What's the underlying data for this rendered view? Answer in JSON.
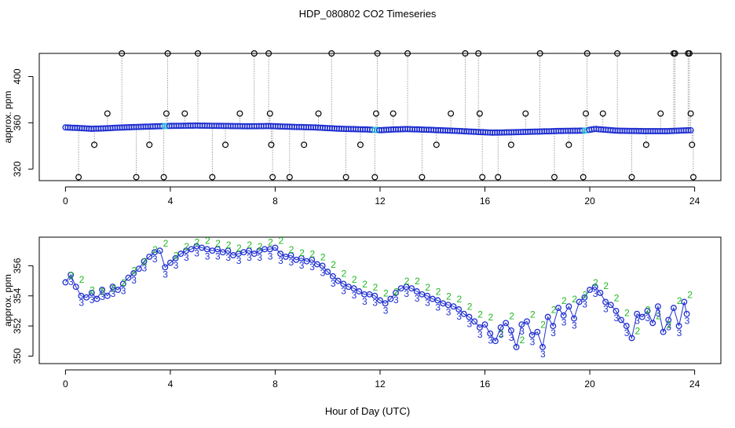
{
  "title": "HDP_080802  CO2 Timeseries",
  "xlabel": "Hour of Day (UTC)",
  "colors": {
    "outlier": "#000000",
    "series_fill": "#1f2fd0",
    "highlight": "#22c7d8",
    "label2": "#1fb81f",
    "label3": "#1f2fd0",
    "connector": "#888888"
  },
  "chart_data": [
    {
      "type": "scatter",
      "name": "raw",
      "ylabel": "approx. ppm",
      "xlim": [
        -1.0,
        25.0
      ],
      "ylim": [
        310,
        420
      ],
      "xticks": [
        0,
        4,
        8,
        12,
        16,
        20,
        24
      ],
      "xtick_labels": [
        "0",
        "4",
        "8",
        "12",
        "16",
        "20",
        "24"
      ],
      "yticks": [
        320,
        360,
        400
      ],
      "ytick_labels": [
        "320",
        "360",
        "400"
      ],
      "baseline": [
        {
          "x": 0.0,
          "y": 356.0
        },
        {
          "x": 0.5,
          "y": 355.5
        },
        {
          "x": 1.0,
          "y": 354.8
        },
        {
          "x": 1.5,
          "y": 355.2
        },
        {
          "x": 2.0,
          "y": 355.8
        },
        {
          "x": 2.5,
          "y": 356.2
        },
        {
          "x": 3.0,
          "y": 356.6
        },
        {
          "x": 3.5,
          "y": 357.0
        },
        {
          "x": 4.0,
          "y": 357.3
        },
        {
          "x": 5.0,
          "y": 357.6
        },
        {
          "x": 6.0,
          "y": 357.3
        },
        {
          "x": 7.0,
          "y": 357.0
        },
        {
          "x": 7.8,
          "y": 357.2
        },
        {
          "x": 8.5,
          "y": 356.6
        },
        {
          "x": 9.5,
          "y": 356.0
        },
        {
          "x": 10.5,
          "y": 354.8
        },
        {
          "x": 11.5,
          "y": 354.2
        },
        {
          "x": 12.0,
          "y": 353.6
        },
        {
          "x": 12.5,
          "y": 354.2
        },
        {
          "x": 13.0,
          "y": 354.6
        },
        {
          "x": 14.0,
          "y": 353.8
        },
        {
          "x": 15.0,
          "y": 352.9
        },
        {
          "x": 15.8,
          "y": 352.0
        },
        {
          "x": 16.3,
          "y": 351.5
        },
        {
          "x": 17.0,
          "y": 351.8
        },
        {
          "x": 18.0,
          "y": 352.4
        },
        {
          "x": 19.0,
          "y": 353.0
        },
        {
          "x": 19.8,
          "y": 353.2
        },
        {
          "x": 20.2,
          "y": 354.7
        },
        {
          "x": 21.0,
          "y": 353.2
        },
        {
          "x": 22.0,
          "y": 352.8
        },
        {
          "x": 23.0,
          "y": 352.8
        },
        {
          "x": 23.7,
          "y": 353.5
        }
      ],
      "outliers": [
        {
          "x": 0.5,
          "y": 313
        },
        {
          "x": 1.1,
          "y": 341
        },
        {
          "x": 1.6,
          "y": 368
        },
        {
          "x": 2.15,
          "y": 420
        },
        {
          "x": 2.7,
          "y": 313
        },
        {
          "x": 3.2,
          "y": 341
        },
        {
          "x": 3.75,
          "y": 313
        },
        {
          "x": 3.85,
          "y": 368
        },
        {
          "x": 3.9,
          "y": 420
        },
        {
          "x": 4.55,
          "y": 368
        },
        {
          "x": 5.05,
          "y": 420
        },
        {
          "x": 5.6,
          "y": 313
        },
        {
          "x": 6.1,
          "y": 341
        },
        {
          "x": 6.65,
          "y": 368
        },
        {
          "x": 7.2,
          "y": 420
        },
        {
          "x": 7.75,
          "y": 420
        },
        {
          "x": 7.8,
          "y": 368
        },
        {
          "x": 7.85,
          "y": 341
        },
        {
          "x": 7.9,
          "y": 313
        },
        {
          "x": 8.55,
          "y": 313
        },
        {
          "x": 9.1,
          "y": 341
        },
        {
          "x": 9.65,
          "y": 368
        },
        {
          "x": 10.15,
          "y": 420
        },
        {
          "x": 10.7,
          "y": 313
        },
        {
          "x": 11.25,
          "y": 341
        },
        {
          "x": 11.8,
          "y": 313
        },
        {
          "x": 11.85,
          "y": 368
        },
        {
          "x": 11.9,
          "y": 420
        },
        {
          "x": 12.5,
          "y": 368
        },
        {
          "x": 13.05,
          "y": 420
        },
        {
          "x": 13.6,
          "y": 313
        },
        {
          "x": 14.15,
          "y": 341
        },
        {
          "x": 14.7,
          "y": 368
        },
        {
          "x": 15.25,
          "y": 420
        },
        {
          "x": 15.75,
          "y": 420
        },
        {
          "x": 15.8,
          "y": 368
        },
        {
          "x": 15.9,
          "y": 313
        },
        {
          "x": 16.5,
          "y": 313
        },
        {
          "x": 17.0,
          "y": 341
        },
        {
          "x": 17.55,
          "y": 368
        },
        {
          "x": 18.1,
          "y": 420
        },
        {
          "x": 18.65,
          "y": 313
        },
        {
          "x": 19.2,
          "y": 341
        },
        {
          "x": 19.75,
          "y": 313
        },
        {
          "x": 19.85,
          "y": 368
        },
        {
          "x": 19.9,
          "y": 420
        },
        {
          "x": 20.5,
          "y": 368
        },
        {
          "x": 21.05,
          "y": 420
        },
        {
          "x": 21.6,
          "y": 313
        },
        {
          "x": 22.15,
          "y": 341
        },
        {
          "x": 22.7,
          "y": 368
        },
        {
          "x": 23.2,
          "y": 420
        },
        {
          "x": 23.25,
          "y": 420
        },
        {
          "x": 23.75,
          "y": 420
        },
        {
          "x": 23.8,
          "y": 420
        },
        {
          "x": 23.85,
          "y": 368
        },
        {
          "x": 23.9,
          "y": 341
        },
        {
          "x": 23.95,
          "y": 313
        }
      ]
    },
    {
      "type": "scatter",
      "name": "filtered",
      "ylabel": "approx. ppm",
      "xlim": [
        -1.0,
        25.0
      ],
      "ylim": [
        349.5,
        357.9
      ],
      "xticks": [
        0,
        4,
        8,
        12,
        16,
        20,
        24
      ],
      "xtick_labels": [
        "0",
        "4",
        "8",
        "12",
        "16",
        "20",
        "24"
      ],
      "yticks": [
        350,
        352,
        354,
        356
      ],
      "ytick_labels": [
        "350",
        "352",
        "354",
        "356"
      ],
      "marker_labels": [
        "2",
        "3"
      ],
      "series": [
        {
          "x": 0.0,
          "y": 354.9
        },
        {
          "x": 0.2,
          "y": 355.4
        },
        {
          "x": 0.4,
          "y": 354.6
        },
        {
          "x": 0.6,
          "y": 354.0
        },
        {
          "x": 0.8,
          "y": 353.9
        },
        {
          "x": 1.0,
          "y": 354.2
        },
        {
          "x": 1.2,
          "y": 353.8
        },
        {
          "x": 1.4,
          "y": 354.4
        },
        {
          "x": 1.6,
          "y": 354.0
        },
        {
          "x": 1.8,
          "y": 354.6
        },
        {
          "x": 2.0,
          "y": 354.4
        },
        {
          "x": 2.2,
          "y": 354.8
        },
        {
          "x": 2.4,
          "y": 355.2
        },
        {
          "x": 2.6,
          "y": 355.5
        },
        {
          "x": 2.8,
          "y": 355.8
        },
        {
          "x": 3.0,
          "y": 356.3
        },
        {
          "x": 3.2,
          "y": 356.6
        },
        {
          "x": 3.4,
          "y": 356.9
        },
        {
          "x": 3.6,
          "y": 357.0
        },
        {
          "x": 3.8,
          "y": 355.9
        },
        {
          "x": 4.0,
          "y": 356.2
        },
        {
          "x": 4.2,
          "y": 356.5
        },
        {
          "x": 4.4,
          "y": 356.8
        },
        {
          "x": 4.6,
          "y": 357.0
        },
        {
          "x": 4.8,
          "y": 357.1
        },
        {
          "x": 5.0,
          "y": 357.3
        },
        {
          "x": 5.2,
          "y": 357.2
        },
        {
          "x": 5.4,
          "y": 357.1
        },
        {
          "x": 5.6,
          "y": 357.0
        },
        {
          "x": 5.8,
          "y": 357.1
        },
        {
          "x": 6.0,
          "y": 356.9
        },
        {
          "x": 6.2,
          "y": 357.0
        },
        {
          "x": 6.4,
          "y": 356.7
        },
        {
          "x": 6.6,
          "y": 356.8
        },
        {
          "x": 6.8,
          "y": 356.9
        },
        {
          "x": 7.0,
          "y": 357.0
        },
        {
          "x": 7.2,
          "y": 356.8
        },
        {
          "x": 7.4,
          "y": 357.0
        },
        {
          "x": 7.6,
          "y": 357.1
        },
        {
          "x": 7.8,
          "y": 357.1
        },
        {
          "x": 8.0,
          "y": 357.2
        },
        {
          "x": 8.2,
          "y": 356.8
        },
        {
          "x": 8.4,
          "y": 356.6
        },
        {
          "x": 8.6,
          "y": 356.7
        },
        {
          "x": 8.8,
          "y": 356.4
        },
        {
          "x": 9.0,
          "y": 356.5
        },
        {
          "x": 9.2,
          "y": 356.3
        },
        {
          "x": 9.4,
          "y": 356.4
        },
        {
          "x": 9.6,
          "y": 356.1
        },
        {
          "x": 9.8,
          "y": 356.0
        },
        {
          "x": 10.0,
          "y": 355.6
        },
        {
          "x": 10.2,
          "y": 355.3
        },
        {
          "x": 10.4,
          "y": 355.0
        },
        {
          "x": 10.6,
          "y": 354.8
        },
        {
          "x": 10.8,
          "y": 354.6
        },
        {
          "x": 11.0,
          "y": 354.5
        },
        {
          "x": 11.2,
          "y": 354.3
        },
        {
          "x": 11.4,
          "y": 354.1
        },
        {
          "x": 11.6,
          "y": 354.1
        },
        {
          "x": 11.8,
          "y": 354.0
        },
        {
          "x": 12.0,
          "y": 353.7
        },
        {
          "x": 12.2,
          "y": 353.5
        },
        {
          "x": 12.4,
          "y": 353.8
        },
        {
          "x": 12.6,
          "y": 354.2
        },
        {
          "x": 12.8,
          "y": 354.5
        },
        {
          "x": 13.0,
          "y": 354.6
        },
        {
          "x": 13.2,
          "y": 354.5
        },
        {
          "x": 13.4,
          "y": 354.3
        },
        {
          "x": 13.6,
          "y": 354.1
        },
        {
          "x": 13.8,
          "y": 354.0
        },
        {
          "x": 14.0,
          "y": 353.8
        },
        {
          "x": 14.2,
          "y": 353.7
        },
        {
          "x": 14.4,
          "y": 353.5
        },
        {
          "x": 14.6,
          "y": 353.4
        },
        {
          "x": 14.8,
          "y": 353.3
        },
        {
          "x": 15.0,
          "y": 353.1
        },
        {
          "x": 15.2,
          "y": 352.8
        },
        {
          "x": 15.4,
          "y": 352.6
        },
        {
          "x": 15.6,
          "y": 352.3
        },
        {
          "x": 15.8,
          "y": 351.9
        },
        {
          "x": 16.0,
          "y": 352.1
        },
        {
          "x": 16.2,
          "y": 351.5
        },
        {
          "x": 16.4,
          "y": 351.0
        },
        {
          "x": 16.6,
          "y": 351.9
        },
        {
          "x": 16.8,
          "y": 352.2
        },
        {
          "x": 17.0,
          "y": 351.7
        },
        {
          "x": 17.2,
          "y": 350.6
        },
        {
          "x": 17.4,
          "y": 352.1
        },
        {
          "x": 17.6,
          "y": 352.3
        },
        {
          "x": 17.8,
          "y": 351.4
        },
        {
          "x": 18.0,
          "y": 351.6
        },
        {
          "x": 18.2,
          "y": 350.6
        },
        {
          "x": 18.4,
          "y": 352.6
        },
        {
          "x": 18.6,
          "y": 352.0
        },
        {
          "x": 18.8,
          "y": 353.2
        },
        {
          "x": 19.0,
          "y": 352.7
        },
        {
          "x": 19.2,
          "y": 353.3
        },
        {
          "x": 19.4,
          "y": 352.5
        },
        {
          "x": 19.6,
          "y": 353.6
        },
        {
          "x": 19.8,
          "y": 353.9
        },
        {
          "x": 20.0,
          "y": 354.4
        },
        {
          "x": 20.2,
          "y": 354.6
        },
        {
          "x": 20.4,
          "y": 354.2
        },
        {
          "x": 20.6,
          "y": 353.6
        },
        {
          "x": 20.8,
          "y": 353.4
        },
        {
          "x": 21.0,
          "y": 353.0
        },
        {
          "x": 21.2,
          "y": 352.4
        },
        {
          "x": 21.4,
          "y": 352.0
        },
        {
          "x": 21.6,
          "y": 351.2
        },
        {
          "x": 21.8,
          "y": 352.8
        },
        {
          "x": 22.0,
          "y": 352.6
        },
        {
          "x": 22.2,
          "y": 353.0
        },
        {
          "x": 22.4,
          "y": 352.2
        },
        {
          "x": 22.6,
          "y": 353.3
        },
        {
          "x": 22.8,
          "y": 351.6
        },
        {
          "x": 23.0,
          "y": 352.4
        },
        {
          "x": 23.2,
          "y": 353.2
        },
        {
          "x": 23.4,
          "y": 352.0
        },
        {
          "x": 23.6,
          "y": 353.6
        },
        {
          "x": 23.7,
          "y": 352.8
        }
      ]
    }
  ]
}
